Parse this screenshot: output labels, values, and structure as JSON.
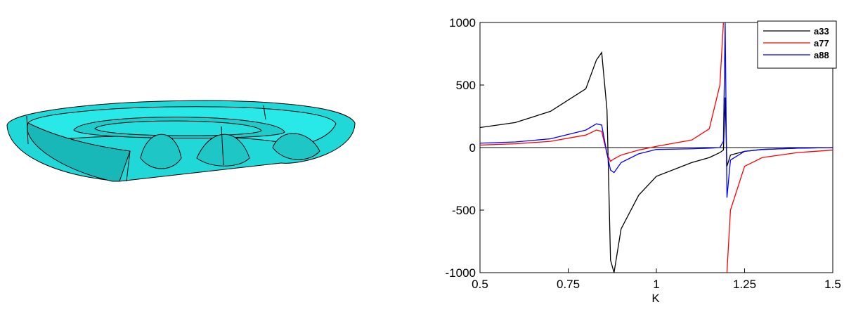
{
  "chart_data": {
    "type": "line",
    "x_label": "K",
    "x": [
      0.5,
      0.6,
      0.7,
      0.8,
      0.83,
      0.845,
      0.86,
      0.87,
      0.88,
      0.9,
      0.95,
      1.0,
      1.1,
      1.15,
      1.18,
      1.19,
      1.195,
      1.2,
      1.21,
      1.25,
      1.3,
      1.4,
      1.5
    ],
    "series": [
      {
        "name": "a33",
        "color": "#000000",
        "values": [
          160,
          200,
          290,
          470,
          700,
          760,
          300,
          -900,
          -1000,
          -650,
          -380,
          -230,
          -120,
          -80,
          -40,
          -20,
          400,
          -150,
          -60,
          -30,
          -15,
          -5,
          0
        ]
      },
      {
        "name": "a77",
        "color": "#ff0000",
        "values": [
          20,
          30,
          50,
          100,
          140,
          130,
          -50,
          -110,
          -90,
          -60,
          -20,
          10,
          60,
          150,
          500,
          1000,
          null,
          -1000,
          -500,
          -150,
          -80,
          -40,
          -20
        ]
      },
      {
        "name": "a88",
        "color": "#0000ff",
        "values": [
          35,
          45,
          70,
          140,
          190,
          180,
          -50,
          -180,
          -200,
          -120,
          -50,
          -15,
          -10,
          -5,
          0,
          50,
          1000,
          -400,
          -100,
          -30,
          -15,
          -5,
          0
        ]
      }
    ],
    "xlim": [
      0.5,
      1.5
    ],
    "xticks": [
      0.5,
      0.75,
      1,
      1.25,
      1.5
    ],
    "ylim": [
      -1000,
      1000
    ],
    "yticks": [
      -1000,
      -500,
      0,
      500,
      1000
    ],
    "legend": "upper right"
  }
}
